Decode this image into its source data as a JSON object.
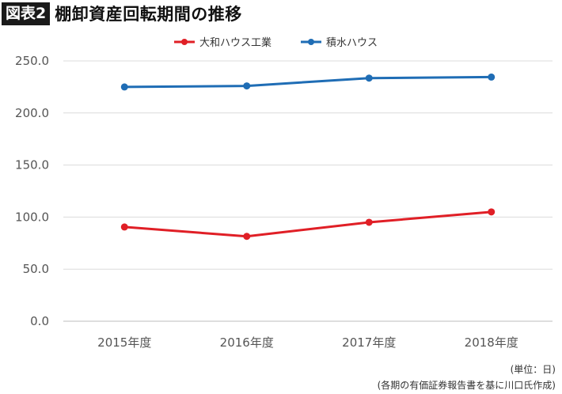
{
  "header": {
    "badge": "図表2",
    "title": "棚卸資産回転期間の推移"
  },
  "chart_data": {
    "type": "line",
    "categories": [
      "2015年度",
      "2016年度",
      "2017年度",
      "2018年度"
    ],
    "ylim": [
      0,
      250
    ],
    "yticks": [
      "0.0",
      "50.0",
      "100.0",
      "150.0",
      "200.0",
      "250.0"
    ],
    "grid": true,
    "legend_position": "top",
    "series": [
      {
        "name": "大和ハウス工業",
        "color": "#e01f26",
        "values": [
          90.5,
          81.5,
          95.0,
          105.0
        ]
      },
      {
        "name": "積水ハウス",
        "color": "#1f6db5",
        "values": [
          225.0,
          226.0,
          233.5,
          234.5
        ]
      }
    ]
  },
  "notes": {
    "unit": "(単位：日)",
    "source": "(各期の有価証券報告書を基に川口氏作成)"
  }
}
